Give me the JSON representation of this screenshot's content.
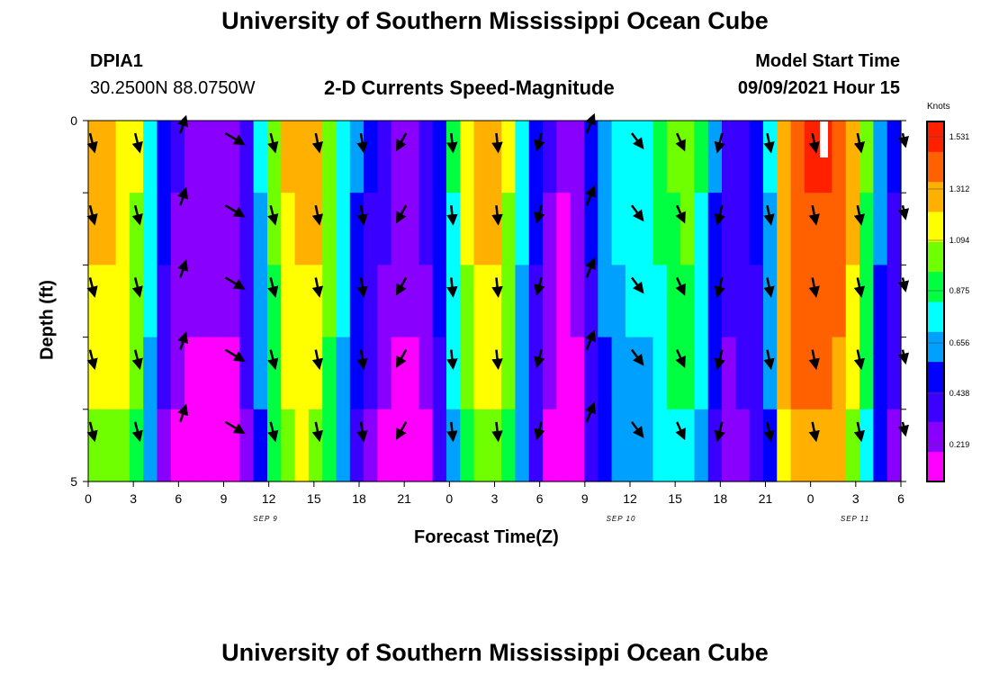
{
  "header": {
    "title": "University of Southern Mississippi Ocean Cube",
    "station_id": "DPIA1",
    "coordinates": "30.2500N  88.0750W",
    "subtitle": "2-D Currents Speed-Magnitude",
    "model_label": "Model Start Time",
    "model_time": "09/09/2021 Hour 15"
  },
  "footer": {
    "title": "University of Southern Mississippi Ocean Cube"
  },
  "chart_data": {
    "type": "heatmap",
    "title": "2-D Currents Speed-Magnitude",
    "xlabel": "Forecast Time(Z)",
    "ylabel": "Depth (ft)",
    "x_tick_labels": [
      "0",
      "3",
      "6",
      "9",
      "12",
      "15",
      "18",
      "21",
      "0",
      "3",
      "6",
      "9",
      "12",
      "15",
      "18",
      "21",
      "0",
      "3",
      "6"
    ],
    "date_labels": [
      "SEP 9",
      "SEP 10",
      "SEP 11"
    ],
    "y_tick_labels": [
      "0",
      "5"
    ],
    "ylim": [
      0,
      5
    ],
    "depth_layers": 5,
    "forecast_hours": 54,
    "colorbar": {
      "unit": "Knots",
      "ticks": [
        "1.531",
        "1.312",
        "1.094",
        "0.875",
        "0.656",
        "0.438",
        "0.219"
      ],
      "range": [
        0,
        1.75
      ],
      "colors": [
        "#ff00ff",
        "#8a00ff",
        "#3a00ff",
        "#0000ff",
        "#00a0ff",
        "#00ffff",
        "#00ff40",
        "#70ff00",
        "#ffff00",
        "#ffb000",
        "#ff6000",
        "#ff2000"
      ]
    },
    "speed_profile_surface": [
      1.3,
      1.3,
      1.26,
      1.12,
      0.78,
      0.42,
      0.26,
      0.2,
      0.2,
      0.2,
      0.22,
      0.38,
      0.7,
      1.05,
      1.28,
      1.32,
      1.3,
      1.1,
      0.8,
      0.55,
      0.4,
      0.28,
      0.22,
      0.22,
      0.28,
      0.5,
      0.85,
      1.15,
      1.3,
      1.3,
      1.12,
      0.75,
      0.45,
      0.25,
      0.1,
      0.18,
      0.45,
      0.62,
      0.75,
      0.78,
      0.8,
      0.9,
      1.0,
      1.02,
      0.85,
      0.55,
      0.35,
      0.38,
      0.45,
      0.7,
      1.4,
      1.55,
      1.58,
      1.58,
      1.5,
      1.3,
      1.0,
      0.6,
      0.4
    ],
    "layer_offsets": [
      0.05,
      0.02,
      -0.03,
      -0.08,
      -0.15
    ],
    "vectors": [
      {
        "hour": 0,
        "dx": 5,
        "dy": 20
      },
      {
        "hour": 3,
        "dx": 5,
        "dy": 20
      },
      {
        "hour": 6,
        "dx": 6,
        "dy": -18
      },
      {
        "hour": 9,
        "dx": 20,
        "dy": 12
      },
      {
        "hour": 12,
        "dx": 5,
        "dy": 20
      },
      {
        "hour": 15,
        "dx": 4,
        "dy": 20
      },
      {
        "hour": 18,
        "dx": 3,
        "dy": 20
      },
      {
        "hour": 21,
        "dx": -10,
        "dy": 18
      },
      {
        "hour": 24,
        "dx": 2,
        "dy": 20
      },
      {
        "hour": 27,
        "dx": 2,
        "dy": 20
      },
      {
        "hour": 30,
        "dx": -5,
        "dy": 18
      },
      {
        "hour": 33,
        "dx": 8,
        "dy": -20
      },
      {
        "hour": 36,
        "dx": 12,
        "dy": 16
      },
      {
        "hour": 39,
        "dx": 8,
        "dy": 18
      },
      {
        "hour": 42,
        "dx": -5,
        "dy": 20
      },
      {
        "hour": 45,
        "dx": 4,
        "dy": 20
      },
      {
        "hour": 48,
        "dx": 4,
        "dy": 20
      },
      {
        "hour": 51,
        "dx": 4,
        "dy": 20
      },
      {
        "hour": 54,
        "dx": 3,
        "dy": 14
      }
    ],
    "grid": false,
    "legend": "right"
  }
}
